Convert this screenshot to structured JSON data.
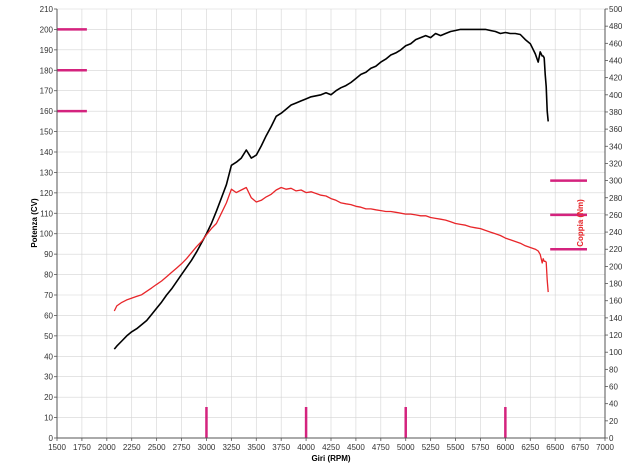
{
  "chart_data": {
    "type": "line",
    "xlabel": "Giri (RPM)",
    "ylabel_left": "Potenza (CV)",
    "ylabel_right": "Coppia (Nm)",
    "xlim": [
      1500,
      7000
    ],
    "ylim_left": [
      0,
      210
    ],
    "ylim_right": [
      0,
      500
    ],
    "x_ticks": [
      1500,
      1750,
      2000,
      2250,
      2500,
      2750,
      3000,
      3250,
      3500,
      3750,
      4000,
      4250,
      4500,
      4750,
      5000,
      5250,
      5500,
      5750,
      6000,
      6250,
      6500,
      6750,
      7000
    ],
    "y_left_ticks": [
      0,
      10,
      20,
      30,
      40,
      50,
      60,
      70,
      80,
      90,
      100,
      110,
      120,
      130,
      140,
      150,
      160,
      170,
      180,
      190,
      200,
      210
    ],
    "y_right_ticks": [
      0,
      20,
      40,
      60,
      80,
      100,
      120,
      140,
      160,
      180,
      200,
      220,
      240,
      260,
      280,
      300,
      320,
      340,
      360,
      380,
      400,
      420,
      440,
      460,
      480,
      500
    ],
    "grid": true,
    "colors": {
      "power": "#000000",
      "torque": "#e8262a",
      "marker": "#d4237e",
      "grid": "#d4d4d4"
    },
    "series": [
      {
        "name": "Potenza",
        "axis": "left",
        "x": [
          2075,
          2100,
          2150,
          2200,
          2250,
          2300,
          2350,
          2400,
          2450,
          2500,
          2550,
          2600,
          2650,
          2700,
          2750,
          2800,
          2850,
          2900,
          2950,
          3000,
          3050,
          3100,
          3150,
          3200,
          3250,
          3300,
          3350,
          3400,
          3450,
          3500,
          3550,
          3600,
          3650,
          3700,
          3750,
          3800,
          3850,
          3900,
          3950,
          4000,
          4050,
          4100,
          4150,
          4200,
          4250,
          4300,
          4350,
          4400,
          4450,
          4500,
          4550,
          4600,
          4650,
          4700,
          4750,
          4800,
          4850,
          4900,
          4950,
          5000,
          5050,
          5100,
          5150,
          5200,
          5250,
          5300,
          5350,
          5400,
          5450,
          5500,
          5550,
          5600,
          5650,
          5700,
          5750,
          5800,
          5850,
          5900,
          5950,
          6000,
          6050,
          6100,
          6150,
          6200,
          6250,
          6300,
          6330,
          6350,
          6370,
          6380,
          6390,
          6400,
          6410,
          6420,
          6430
        ],
        "values": [
          43.5,
          45,
          47.5,
          50,
          52,
          53.5,
          55.5,
          57.5,
          60.5,
          63.5,
          66.5,
          70,
          73,
          76.5,
          80,
          83.5,
          87,
          91,
          95.5,
          100,
          105,
          111,
          117.5,
          124,
          133.5,
          135,
          137,
          141,
          137,
          138.5,
          143,
          148,
          152.5,
          157.5,
          159,
          161,
          163,
          164,
          165,
          166,
          167,
          167.5,
          168,
          169,
          168,
          170,
          171.5,
          172.5,
          174,
          176,
          178,
          179,
          181,
          182,
          184,
          185.5,
          187.5,
          188.5,
          190,
          192,
          193,
          195,
          196,
          197,
          196,
          198,
          197,
          198,
          199,
          199.5,
          200,
          200,
          200,
          200,
          200,
          200,
          199.5,
          199,
          198,
          198.5,
          198,
          198,
          197.5,
          195,
          193,
          188,
          184,
          189,
          187,
          187,
          186,
          178,
          172,
          160,
          155
        ]
      },
      {
        "name": "Coppia",
        "axis": "right",
        "x": [
          2075,
          2100,
          2150,
          2200,
          2250,
          2300,
          2350,
          2400,
          2450,
          2500,
          2550,
          2600,
          2650,
          2700,
          2750,
          2800,
          2850,
          2900,
          2950,
          3000,
          3050,
          3100,
          3150,
          3200,
          3250,
          3300,
          3350,
          3400,
          3450,
          3500,
          3550,
          3600,
          3650,
          3700,
          3750,
          3800,
          3850,
          3900,
          3950,
          4000,
          4050,
          4100,
          4150,
          4200,
          4250,
          4300,
          4350,
          4400,
          4450,
          4500,
          4550,
          4600,
          4650,
          4700,
          4750,
          4800,
          4850,
          4900,
          4950,
          5000,
          5050,
          5100,
          5150,
          5200,
          5250,
          5300,
          5350,
          5400,
          5450,
          5500,
          5550,
          5600,
          5650,
          5700,
          5750,
          5800,
          5850,
          5900,
          5950,
          6000,
          6050,
          6100,
          6150,
          6200,
          6250,
          6300,
          6330,
          6350,
          6370,
          6380,
          6390,
          6400,
          6410,
          6420,
          6430
        ],
        "values": [
          148,
          154,
          158,
          161,
          163,
          165,
          167,
          171,
          175,
          179,
          183,
          188,
          193,
          198,
          203,
          209,
          216,
          223,
          229,
          237,
          244,
          250,
          262,
          274,
          290,
          286,
          289,
          292,
          280,
          275,
          277,
          281,
          284,
          289,
          292,
          290,
          291,
          288,
          289,
          286,
          287,
          285,
          283,
          282,
          279,
          277,
          274,
          273,
          272,
          270,
          269,
          267,
          267,
          266,
          265,
          264,
          264,
          263,
          262,
          261,
          261,
          260,
          259,
          259,
          257,
          256,
          255,
          254,
          252,
          250,
          249,
          248,
          246,
          245,
          244,
          242,
          240,
          238,
          236,
          233,
          231,
          229,
          227,
          224,
          222,
          220,
          218,
          214,
          204,
          209,
          206,
          206,
          205,
          184,
          170
        ]
      }
    ]
  }
}
